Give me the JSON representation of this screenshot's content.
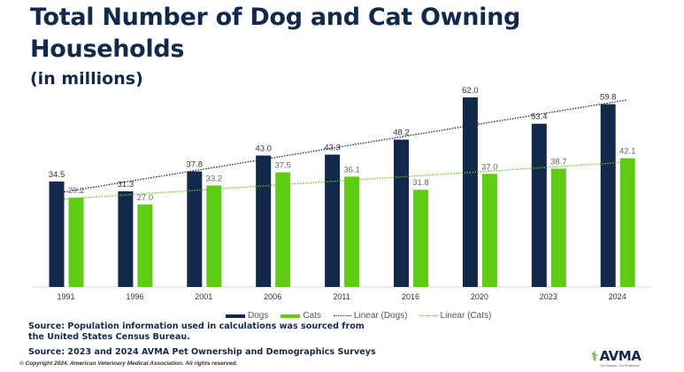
{
  "header": {
    "title": "Total Number of Dog and Cat Owning Households",
    "subtitle": "(in millions)"
  },
  "colors": {
    "dogs": "#13294b",
    "cats": "#5ecc12",
    "trend_dogs": "#13294b",
    "trend_cats": "#5ecc12",
    "label": "#444444",
    "axis": "#d9d9d9"
  },
  "chart_data": {
    "type": "bar",
    "title": "Total Number of Dog and Cat Owning Households",
    "subtitle": "(in millions)",
    "xlabel": "",
    "ylabel": "",
    "categories": [
      "1991",
      "1996",
      "2001",
      "2006",
      "2011",
      "2016",
      "2020",
      "2023",
      "2024"
    ],
    "series": [
      {
        "name": "Dogs",
        "values": [
          34.5,
          31.3,
          37.8,
          43.0,
          43.3,
          48.2,
          62.0,
          53.4,
          59.8
        ]
      },
      {
        "name": "Cats",
        "values": [
          29.2,
          27.0,
          33.2,
          37.5,
          36.1,
          31.8,
          37.0,
          38.7,
          42.1
        ]
      }
    ],
    "trendlines": [
      {
        "name": "Linear (Dogs)",
        "series": "Dogs",
        "type": "linear"
      },
      {
        "name": "Linear (Cats)",
        "series": "Cats",
        "type": "linear"
      }
    ],
    "data_labels": true,
    "grid": false,
    "ylim": [
      0,
      62
    ],
    "legend": "bottom-center"
  },
  "legend": {
    "items": [
      {
        "label": "Dogs"
      },
      {
        "label": "Cats"
      },
      {
        "label": "Linear (Dogs)"
      },
      {
        "label": "Linear (Cats)"
      }
    ]
  },
  "footer": {
    "source1": "Source: Population information used in calculations was sourced from the United States Census Bureau.",
    "source2": "Source: 2023 and 2024 AVMA Pet Ownership and Demographics Surveys",
    "copyright": "© Copyright 2024. American Veterinary Medical Association. All rights reserved.",
    "logo_text": "AVMA",
    "logo_tagline": "Our Passion. Our Profession."
  }
}
